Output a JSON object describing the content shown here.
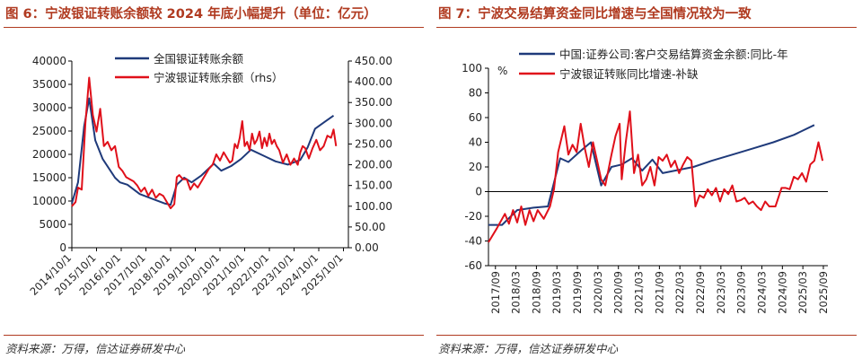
{
  "left": {
    "title": "图 6：宁波银证转账余额较 2024 年底小幅提升（单位：亿元）",
    "source": "资料来源：万得，信达证券研发中心",
    "chart_data": {
      "type": "line",
      "dual_axis": true,
      "yleft_lim": [
        0,
        40000
      ],
      "yleft_ticks": [
        "0",
        "5000",
        "10000",
        "15000",
        "20000",
        "25000",
        "30000",
        "35000",
        "40000"
      ],
      "yright_lim": [
        0,
        450
      ],
      "yright_ticks": [
        "0.00",
        "50.00",
        "100.00",
        "150.00",
        "200.00",
        "250.00",
        "300.00",
        "350.00",
        "400.00",
        "450.00"
      ],
      "x_lim": [
        2014.75,
        2025.95
      ],
      "x_ticks": [
        {
          "value": 2014.75,
          "label": "2014/10/1"
        },
        {
          "value": 2015.75,
          "label": "2015/10/1"
        },
        {
          "value": 2016.75,
          "label": "2016/10/1"
        },
        {
          "value": 2017.75,
          "label": "2017/10/1"
        },
        {
          "value": 2018.75,
          "label": "2018/10/1"
        },
        {
          "value": 2019.75,
          "label": "2019/10/1"
        },
        {
          "value": 2020.75,
          "label": "2020/10/1"
        },
        {
          "value": 2021.75,
          "label": "2021/10/1"
        },
        {
          "value": 2022.75,
          "label": "2022/10/1"
        },
        {
          "value": 2023.75,
          "label": "2023/10/1"
        },
        {
          "value": 2024.75,
          "label": "2024/10/1"
        },
        {
          "value": 2025.75,
          "label": "2025/10/1"
        }
      ],
      "legend": "top-center",
      "series": [
        {
          "name": "全国银证转账余额",
          "axis": "left",
          "color": "#1f3a7a",
          "points": [
            [
              2014.75,
              9500
            ],
            [
              2015.0,
              14000
            ],
            [
              2015.25,
              26000
            ],
            [
              2015.45,
              32000
            ],
            [
              2015.7,
              23000
            ],
            [
              2016.0,
              19000
            ],
            [
              2016.5,
              15000
            ],
            [
              2016.7,
              14000
            ],
            [
              2017.0,
              13500
            ],
            [
              2017.5,
              11500
            ],
            [
              2018.0,
              10500
            ],
            [
              2018.5,
              9500
            ],
            [
              2018.75,
              9200
            ],
            [
              2019.0,
              13500
            ],
            [
              2019.3,
              15000
            ],
            [
              2019.6,
              14000
            ],
            [
              2020.0,
              15500
            ],
            [
              2020.5,
              18000
            ],
            [
              2020.8,
              16500
            ],
            [
              2021.2,
              17500
            ],
            [
              2021.6,
              19000
            ],
            [
              2022.0,
              21000
            ],
            [
              2022.6,
              19500
            ],
            [
              2023.0,
              18500
            ],
            [
              2023.5,
              17800
            ],
            [
              2024.0,
              18800
            ],
            [
              2024.3,
              21500
            ],
            [
              2024.6,
              25500
            ],
            [
              2025.0,
              27000
            ],
            [
              2025.35,
              28300
            ]
          ]
        },
        {
          "name": "宁波银证转账余额（rhs）",
          "axis": "right",
          "color": "#e0101a",
          "points": [
            [
              2014.75,
              100
            ],
            [
              2014.9,
              110
            ],
            [
              2015.0,
              145
            ],
            [
              2015.15,
              140
            ],
            [
              2015.3,
              300
            ],
            [
              2015.45,
              410
            ],
            [
              2015.6,
              320
            ],
            [
              2015.75,
              280
            ],
            [
              2015.9,
              335
            ],
            [
              2016.05,
              245
            ],
            [
              2016.2,
              255
            ],
            [
              2016.35,
              235
            ],
            [
              2016.5,
              245
            ],
            [
              2016.65,
              195
            ],
            [
              2016.8,
              185
            ],
            [
              2016.95,
              170
            ],
            [
              2017.1,
              165
            ],
            [
              2017.25,
              160
            ],
            [
              2017.4,
              150
            ],
            [
              2017.55,
              135
            ],
            [
              2017.7,
              145
            ],
            [
              2017.85,
              125
            ],
            [
              2018.0,
              140
            ],
            [
              2018.15,
              120
            ],
            [
              2018.3,
              130
            ],
            [
              2018.45,
              125
            ],
            [
              2018.6,
              110
            ],
            [
              2018.75,
              95
            ],
            [
              2018.9,
              105
            ],
            [
              2019.0,
              170
            ],
            [
              2019.1,
              175
            ],
            [
              2019.25,
              165
            ],
            [
              2019.4,
              165
            ],
            [
              2019.55,
              140
            ],
            [
              2019.7,
              155
            ],
            [
              2019.85,
              145
            ],
            [
              2020.0,
              160
            ],
            [
              2020.15,
              175
            ],
            [
              2020.3,
              190
            ],
            [
              2020.45,
              200
            ],
            [
              2020.6,
              225
            ],
            [
              2020.75,
              210
            ],
            [
              2020.9,
              230
            ],
            [
              2021.05,
              215
            ],
            [
              2021.15,
              205
            ],
            [
              2021.25,
              210
            ],
            [
              2021.35,
              250
            ],
            [
              2021.45,
              240
            ],
            [
              2021.55,
              265
            ],
            [
              2021.65,
              305
            ],
            [
              2021.75,
              245
            ],
            [
              2021.85,
              255
            ],
            [
              2021.95,
              235
            ],
            [
              2022.05,
              275
            ],
            [
              2022.15,
              250
            ],
            [
              2022.25,
              260
            ],
            [
              2022.35,
              280
            ],
            [
              2022.45,
              240
            ],
            [
              2022.55,
              265
            ],
            [
              2022.65,
              245
            ],
            [
              2022.75,
              275
            ],
            [
              2022.85,
              250
            ],
            [
              2022.95,
              260
            ],
            [
              2023.05,
              245
            ],
            [
              2023.15,
              235
            ],
            [
              2023.3,
              205
            ],
            [
              2023.45,
              225
            ],
            [
              2023.6,
              200
            ],
            [
              2023.75,
              215
            ],
            [
              2023.9,
              200
            ],
            [
              2024.0,
              230
            ],
            [
              2024.1,
              245
            ],
            [
              2024.2,
              240
            ],
            [
              2024.35,
              215
            ],
            [
              2024.5,
              240
            ],
            [
              2024.65,
              260
            ],
            [
              2024.8,
              235
            ],
            [
              2024.95,
              245
            ],
            [
              2025.1,
              270
            ],
            [
              2025.25,
              265
            ],
            [
              2025.35,
              285
            ],
            [
              2025.45,
              245
            ]
          ]
        }
      ]
    }
  },
  "right": {
    "title": "图 7：宁波交易结算资金同比增速与全国情况较为一致",
    "source": "资料来源：万得，信达证券研发中心",
    "chart_data": {
      "type": "line",
      "ylim": [
        -60,
        100
      ],
      "yticks": [
        "-60",
        "-40",
        "-20",
        "0",
        "20",
        "40",
        "60",
        "80",
        "100"
      ],
      "yunit": "%",
      "x_lim": [
        2017.5,
        2025.78
      ],
      "x_ticks": [
        {
          "value": 2017.67,
          "label": "2017/09"
        },
        {
          "value": 2018.17,
          "label": "2018/03"
        },
        {
          "value": 2018.67,
          "label": "2018/09"
        },
        {
          "value": 2019.17,
          "label": "2019/03"
        },
        {
          "value": 2019.67,
          "label": "2019/09"
        },
        {
          "value": 2020.17,
          "label": "2020/03"
        },
        {
          "value": 2020.67,
          "label": "2020/09"
        },
        {
          "value": 2021.17,
          "label": "2021/03"
        },
        {
          "value": 2021.67,
          "label": "2021/09"
        },
        {
          "value": 2022.17,
          "label": "2022/03"
        },
        {
          "value": 2022.67,
          "label": "2022/09"
        },
        {
          "value": 2023.17,
          "label": "2023/03"
        },
        {
          "value": 2023.67,
          "label": "2023/09"
        },
        {
          "value": 2024.17,
          "label": "2024/03"
        },
        {
          "value": 2024.67,
          "label": "2024/09"
        },
        {
          "value": 2025.17,
          "label": "2025/03"
        },
        {
          "value": 2025.67,
          "label": "2025/09"
        }
      ],
      "legend": "top-left",
      "series": [
        {
          "name": "中国:证券公司:客户交易结算资金余额:同比-年",
          "color": "#1f3a7a",
          "points": [
            [
              2017.5,
              -27
            ],
            [
              2017.83,
              -27
            ],
            [
              2018.2,
              -15
            ],
            [
              2018.6,
              -13
            ],
            [
              2018.95,
              -12
            ],
            [
              2019.25,
              27
            ],
            [
              2019.45,
              24
            ],
            [
              2019.75,
              33
            ],
            [
              2020.0,
              40
            ],
            [
              2020.25,
              5
            ],
            [
              2020.5,
              20
            ],
            [
              2020.75,
              22
            ],
            [
              2021.0,
              27
            ],
            [
              2021.25,
              17
            ],
            [
              2021.5,
              26
            ],
            [
              2021.75,
              15
            ],
            [
              2022.05,
              17
            ],
            [
              2022.5,
              20
            ],
            [
              2022.95,
              25
            ],
            [
              2023.45,
              30
            ],
            [
              2023.95,
              35
            ],
            [
              2024.45,
              40
            ],
            [
              2024.95,
              46
            ],
            [
              2025.45,
              54
            ]
          ]
        },
        {
          "name": "宁波银证转账同比增速-补缺",
          "color": "#e0101a",
          "points": [
            [
              2017.5,
              -41
            ],
            [
              2017.7,
              -30
            ],
            [
              2017.9,
              -18
            ],
            [
              2018.0,
              -26
            ],
            [
              2018.1,
              -15
            ],
            [
              2018.2,
              -25
            ],
            [
              2018.3,
              -12
            ],
            [
              2018.4,
              -27
            ],
            [
              2018.5,
              -15
            ],
            [
              2018.6,
              -24
            ],
            [
              2018.7,
              -15
            ],
            [
              2018.85,
              -22
            ],
            [
              2019.0,
              -12
            ],
            [
              2019.1,
              2
            ],
            [
              2019.2,
              32
            ],
            [
              2019.35,
              53
            ],
            [
              2019.45,
              30
            ],
            [
              2019.55,
              38
            ],
            [
              2019.65,
              32
            ],
            [
              2019.75,
              55
            ],
            [
              2019.85,
              35
            ],
            [
              2019.95,
              20
            ],
            [
              2020.05,
              40
            ],
            [
              2020.15,
              25
            ],
            [
              2020.25,
              10
            ],
            [
              2020.35,
              5
            ],
            [
              2020.5,
              30
            ],
            [
              2020.6,
              45
            ],
            [
              2020.7,
              55
            ],
            [
              2020.75,
              10
            ],
            [
              2020.85,
              40
            ],
            [
              2020.95,
              65
            ],
            [
              2021.05,
              15
            ],
            [
              2021.15,
              30
            ],
            [
              2021.25,
              5
            ],
            [
              2021.35,
              10
            ],
            [
              2021.45,
              20
            ],
            [
              2021.55,
              5
            ],
            [
              2021.65,
              28
            ],
            [
              2021.75,
              25
            ],
            [
              2021.85,
              30
            ],
            [
              2021.95,
              20
            ],
            [
              2022.05,
              25
            ],
            [
              2022.15,
              15
            ],
            [
              2022.25,
              22
            ],
            [
              2022.35,
              28
            ],
            [
              2022.45,
              25
            ],
            [
              2022.55,
              -12
            ],
            [
              2022.65,
              -3
            ],
            [
              2022.75,
              -5
            ],
            [
              2022.85,
              2
            ],
            [
              2022.95,
              -3
            ],
            [
              2023.05,
              3
            ],
            [
              2023.15,
              -8
            ],
            [
              2023.25,
              2
            ],
            [
              2023.35,
              -2
            ],
            [
              2023.45,
              5
            ],
            [
              2023.55,
              -8
            ],
            [
              2023.65,
              -7
            ],
            [
              2023.75,
              -5
            ],
            [
              2023.85,
              -10
            ],
            [
              2023.95,
              -8
            ],
            [
              2024.05,
              -12
            ],
            [
              2024.15,
              -15
            ],
            [
              2024.25,
              -8
            ],
            [
              2024.35,
              -12
            ],
            [
              2024.5,
              -12
            ],
            [
              2024.65,
              3
            ],
            [
              2024.75,
              3
            ],
            [
              2024.85,
              2
            ],
            [
              2024.95,
              12
            ],
            [
              2025.05,
              10
            ],
            [
              2025.15,
              15
            ],
            [
              2025.25,
              8
            ],
            [
              2025.35,
              22
            ],
            [
              2025.45,
              25
            ],
            [
              2025.55,
              40
            ],
            [
              2025.65,
              25
            ]
          ]
        }
      ]
    }
  }
}
